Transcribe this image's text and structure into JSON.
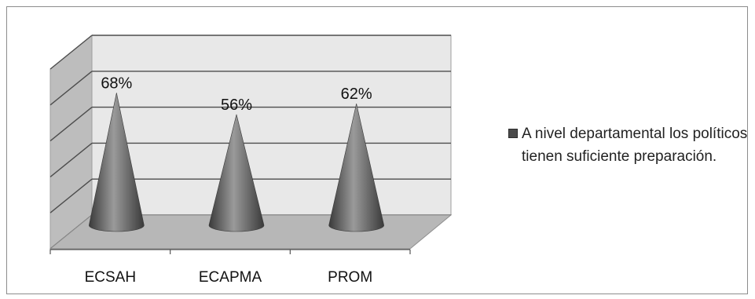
{
  "chart_data": {
    "type": "bar",
    "bar_shape": "3d-cone",
    "categories": [
      "ECSAH",
      "ECAPMA",
      "PROM"
    ],
    "series": [
      {
        "name": "A nivel departamental los políticos tienen suficiente preparación.",
        "values": [
          68,
          56,
          62
        ],
        "labels": [
          "68%",
          "56%",
          "62%"
        ]
      }
    ],
    "ylim": [
      0,
      100
    ],
    "y_gridlines": 5,
    "grid": true,
    "legend_position": "right",
    "colors": {
      "cone_dark": "#3a3a3a",
      "cone_light": "#9a9a9a",
      "back_wall": "#e8e8e8",
      "side_wall": "#bdbdbd",
      "floor": "#b7b7b7",
      "gridline": "#4d4d4d"
    }
  }
}
